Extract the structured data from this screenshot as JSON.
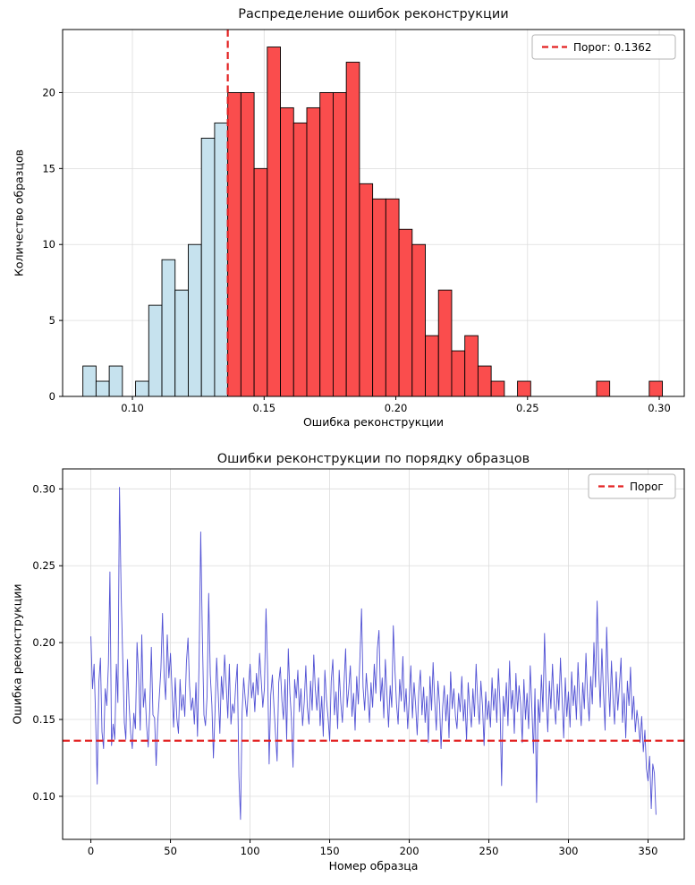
{
  "style": {
    "background": "#ffffff",
    "grid_color": "#dcdcdc",
    "hist_below_color": "#c6e2ee",
    "hist_above_color": "#fa4d4d",
    "bar_edge_color": "#000000",
    "line_color": "#3232cd",
    "threshold_color": "#e32222",
    "legend_border": "#b3b3b3",
    "text_color": "#000000"
  },
  "chart_data": [
    {
      "type": "histogram",
      "title": "Распределение ошибок реконструкции",
      "xlabel": "Ошибка реконструкции",
      "ylabel": "Количество образцов",
      "legend_label": "Порог: 0.1362",
      "legend_position": "upper right",
      "threshold": 0.1362,
      "bin_start": 0.0812,
      "bin_width": 0.005,
      "counts": [
        2,
        1,
        2,
        0,
        1,
        6,
        9,
        7,
        10,
        17,
        18,
        20,
        20,
        15,
        23,
        19,
        18,
        19,
        20,
        20,
        22,
        14,
        13,
        13,
        11,
        10,
        4,
        7,
        3,
        4,
        2,
        1,
        0,
        1,
        0,
        0,
        0,
        0,
        0,
        1,
        0,
        0,
        0,
        1
      ],
      "xlim": [
        0.0735,
        0.3095
      ],
      "ylim": [
        0,
        24.15
      ],
      "xticks": [
        0.1,
        0.15,
        0.2,
        0.25,
        0.3
      ],
      "yticks": [
        0,
        5,
        10,
        15,
        20
      ],
      "xtick_labels": [
        "0.10",
        "0.15",
        "0.20",
        "0.25",
        "0.30"
      ],
      "ytick_labels": [
        "0",
        "5",
        "10",
        "15",
        "20"
      ],
      "grid": true
    },
    {
      "type": "line",
      "title": "Ошибки реконструкции по порядку образцов",
      "xlabel": "Номер образца",
      "ylabel": "Ошибка реконструкции",
      "legend_label": "Порог",
      "legend_position": "upper right",
      "threshold": 0.1362,
      "xlim": [
        -17.75,
        372.75
      ],
      "ylim": [
        0.072,
        0.313
      ],
      "xticks": [
        0,
        50,
        100,
        150,
        200,
        250,
        300,
        350
      ],
      "yticks": [
        0.1,
        0.15,
        0.2,
        0.25,
        0.3
      ],
      "xtick_labels": [
        "0",
        "50",
        "100",
        "150",
        "200",
        "250",
        "300",
        "350"
      ],
      "ytick_labels": [
        "0.10",
        "0.15",
        "0.20",
        "0.25",
        "0.30"
      ],
      "grid": true,
      "values": [
        0.204,
        0.17,
        0.186,
        0.151,
        0.108,
        0.174,
        0.19,
        0.142,
        0.131,
        0.17,
        0.159,
        0.186,
        0.246,
        0.133,
        0.147,
        0.137,
        0.186,
        0.161,
        0.301,
        0.233,
        0.19,
        0.148,
        0.137,
        0.189,
        0.16,
        0.141,
        0.131,
        0.154,
        0.144,
        0.2,
        0.179,
        0.143,
        0.205,
        0.158,
        0.17,
        0.146,
        0.132,
        0.156,
        0.197,
        0.153,
        0.151,
        0.12,
        0.148,
        0.165,
        0.183,
        0.219,
        0.178,
        0.163,
        0.205,
        0.177,
        0.193,
        0.168,
        0.145,
        0.177,
        0.151,
        0.141,
        0.176,
        0.156,
        0.166,
        0.152,
        0.187,
        0.203,
        0.172,
        0.156,
        0.164,
        0.147,
        0.174,
        0.139,
        0.188,
        0.272,
        0.205,
        0.153,
        0.146,
        0.165,
        0.232,
        0.179,
        0.159,
        0.125,
        0.155,
        0.19,
        0.166,
        0.141,
        0.178,
        0.163,
        0.192,
        0.172,
        0.151,
        0.186,
        0.147,
        0.16,
        0.154,
        0.172,
        0.186,
        0.113,
        0.085,
        0.155,
        0.177,
        0.163,
        0.152,
        0.171,
        0.186,
        0.164,
        0.174,
        0.155,
        0.18,
        0.166,
        0.193,
        0.176,
        0.158,
        0.17,
        0.222,
        0.185,
        0.121,
        0.166,
        0.179,
        0.158,
        0.141,
        0.123,
        0.174,
        0.184,
        0.162,
        0.15,
        0.176,
        0.137,
        0.196,
        0.167,
        0.151,
        0.119,
        0.176,
        0.164,
        0.182,
        0.155,
        0.17,
        0.146,
        0.161,
        0.185,
        0.158,
        0.147,
        0.175,
        0.156,
        0.192,
        0.17,
        0.156,
        0.177,
        0.146,
        0.165,
        0.139,
        0.182,
        0.163,
        0.151,
        0.136,
        0.175,
        0.189,
        0.153,
        0.168,
        0.144,
        0.182,
        0.161,
        0.148,
        0.173,
        0.196,
        0.158,
        0.17,
        0.185,
        0.152,
        0.167,
        0.143,
        0.178,
        0.16,
        0.19,
        0.222,
        0.171,
        0.156,
        0.18,
        0.165,
        0.148,
        0.174,
        0.158,
        0.186,
        0.167,
        0.196,
        0.208,
        0.162,
        0.177,
        0.151,
        0.189,
        0.166,
        0.145,
        0.172,
        0.158,
        0.211,
        0.183,
        0.16,
        0.147,
        0.176,
        0.162,
        0.191,
        0.155,
        0.17,
        0.144,
        0.163,
        0.185,
        0.151,
        0.174,
        0.159,
        0.14,
        0.168,
        0.182,
        0.153,
        0.171,
        0.148,
        0.165,
        0.135,
        0.178,
        0.156,
        0.187,
        0.162,
        0.143,
        0.175,
        0.16,
        0.131,
        0.158,
        0.172,
        0.149,
        0.166,
        0.138,
        0.181,
        0.157,
        0.17,
        0.152,
        0.144,
        0.167,
        0.155,
        0.178,
        0.149,
        0.163,
        0.136,
        0.174,
        0.158,
        0.145,
        0.17,
        0.152,
        0.186,
        0.161,
        0.147,
        0.175,
        0.159,
        0.133,
        0.168,
        0.15,
        0.162,
        0.145,
        0.177,
        0.156,
        0.17,
        0.148,
        0.183,
        0.16,
        0.107,
        0.165,
        0.152,
        0.174,
        0.146,
        0.188,
        0.157,
        0.169,
        0.141,
        0.18,
        0.155,
        0.172,
        0.16,
        0.135,
        0.176,
        0.15,
        0.167,
        0.144,
        0.185,
        0.158,
        0.128,
        0.17,
        0.096,
        0.163,
        0.148,
        0.179,
        0.155,
        0.206,
        0.166,
        0.142,
        0.175,
        0.157,
        0.186,
        0.161,
        0.147,
        0.173,
        0.156,
        0.19,
        0.164,
        0.138,
        0.177,
        0.152,
        0.168,
        0.145,
        0.181,
        0.159,
        0.172,
        0.15,
        0.187,
        0.162,
        0.146,
        0.174,
        0.157,
        0.193,
        0.165,
        0.149,
        0.178,
        0.16,
        0.2,
        0.171,
        0.227,
        0.183,
        0.158,
        0.196,
        0.167,
        0.143,
        0.21,
        0.176,
        0.152,
        0.188,
        0.163,
        0.147,
        0.181,
        0.156,
        0.172,
        0.19,
        0.148,
        0.167,
        0.138,
        0.175,
        0.159,
        0.184,
        0.15,
        0.165,
        0.142,
        0.156,
        0.147,
        0.135,
        0.152,
        0.129,
        0.143,
        0.118,
        0.11,
        0.126,
        0.092,
        0.121,
        0.115,
        0.088
      ]
    }
  ]
}
